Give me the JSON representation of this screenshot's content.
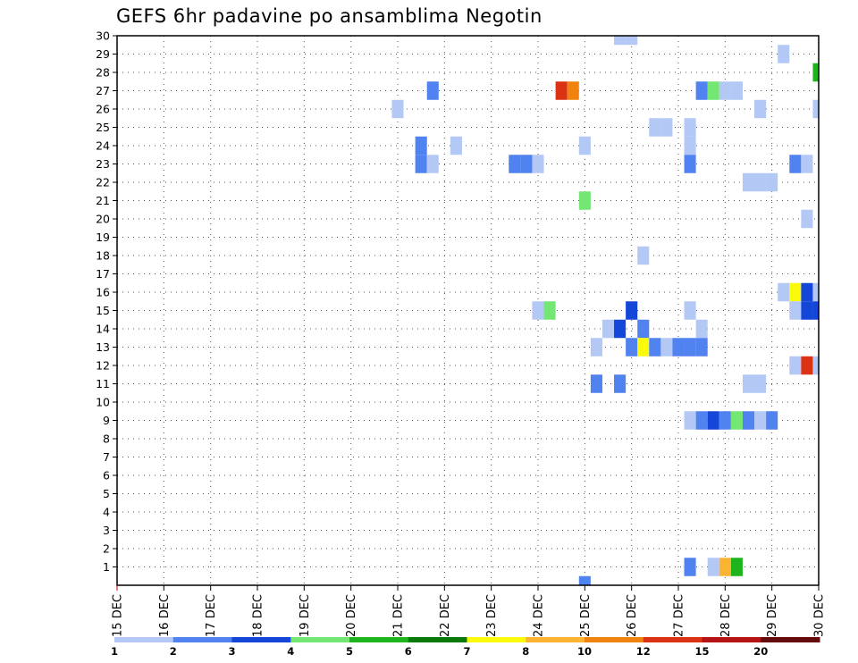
{
  "chart_data": {
    "type": "heatmap",
    "title": "GEFS 6hr padavine po ansamblima Negotin",
    "xlabel": "",
    "ylabel": "",
    "xlim": [
      15,
      30
    ],
    "ylim": [
      0,
      30
    ],
    "grid": true,
    "x_tick_labels": [
      "15 DEC",
      "16 DEC",
      "17 DEC",
      "18 DEC",
      "19 DEC",
      "20 DEC",
      "21 DEC",
      "22 DEC",
      "23 DEC",
      "24 DEC",
      "25 DEC",
      "26 DEC",
      "27 DEC",
      "28 DEC",
      "29 DEC",
      "30 DEC"
    ],
    "y_tick_labels": [
      "1",
      "2",
      "3",
      "4",
      "5",
      "6",
      "7",
      "8",
      "9",
      "10",
      "11",
      "12",
      "13",
      "14",
      "15",
      "16",
      "17",
      "18",
      "19",
      "20",
      "21",
      "22",
      "23",
      "24",
      "25",
      "26",
      "27",
      "28",
      "29",
      "30"
    ],
    "legend": {
      "position": "bottom",
      "bins": [
        {
          "from": 1,
          "to": 2,
          "color": "#b4c8f5"
        },
        {
          "from": 2,
          "to": 3,
          "color": "#5082f0"
        },
        {
          "from": 3,
          "to": 4,
          "color": "#1446d7"
        },
        {
          "from": 4,
          "to": 5,
          "color": "#73e673"
        },
        {
          "from": 5,
          "to": 6,
          "color": "#1eb41e"
        },
        {
          "from": 6,
          "to": 7,
          "color": "#0a780a"
        },
        {
          "from": 7,
          "to": 8,
          "color": "#fafa0a"
        },
        {
          "from": 8,
          "to": 10,
          "color": "#fab432"
        },
        {
          "from": 10,
          "to": 12,
          "color": "#f0820f"
        },
        {
          "from": 12,
          "to": 15,
          "color": "#dc3214"
        },
        {
          "from": 15,
          "to": 20,
          "color": "#b41414"
        },
        {
          "from": 20,
          "to": null,
          "color": "#640a0a"
        }
      ],
      "labels": [
        "1",
        "2",
        "3",
        "4",
        "5",
        "6",
        "7",
        "8",
        "10",
        "12",
        "15",
        "20"
      ]
    },
    "cells": [
      {
        "x": 25.0,
        "y": 0,
        "v": 2.5
      },
      {
        "x": 25.75,
        "y": 30,
        "v": 1.5
      },
      {
        "x": 26.0,
        "y": 30,
        "v": 1.5
      },
      {
        "x": 29.25,
        "y": 29,
        "v": 1.5
      },
      {
        "x": 30.0,
        "y": 28,
        "v": 5.5
      },
      {
        "x": 21.75,
        "y": 27,
        "v": 2.5
      },
      {
        "x": 24.5,
        "y": 27,
        "v": 13
      },
      {
        "x": 24.75,
        "y": 27,
        "v": 11
      },
      {
        "x": 27.5,
        "y": 27,
        "v": 2.5
      },
      {
        "x": 27.75,
        "y": 27,
        "v": 4.5
      },
      {
        "x": 28.0,
        "y": 27,
        "v": 1.5
      },
      {
        "x": 28.25,
        "y": 27,
        "v": 1.5
      },
      {
        "x": 21.0,
        "y": 26,
        "v": 1.5
      },
      {
        "x": 28.75,
        "y": 26,
        "v": 1.5
      },
      {
        "x": 30.0,
        "y": 26,
        "v": 1.5
      },
      {
        "x": 26.5,
        "y": 25,
        "v": 1.5
      },
      {
        "x": 26.75,
        "y": 25,
        "v": 1.5
      },
      {
        "x": 27.25,
        "y": 25,
        "v": 1.5
      },
      {
        "x": 21.5,
        "y": 24,
        "v": 2.5
      },
      {
        "x": 22.25,
        "y": 24,
        "v": 1.5
      },
      {
        "x": 25.0,
        "y": 24,
        "v": 1.5
      },
      {
        "x": 27.25,
        "y": 24,
        "v": 1.5
      },
      {
        "x": 21.5,
        "y": 23,
        "v": 2.5
      },
      {
        "x": 21.75,
        "y": 23,
        "v": 1.5
      },
      {
        "x": 23.5,
        "y": 23,
        "v": 2.5
      },
      {
        "x": 23.75,
        "y": 23,
        "v": 2.5
      },
      {
        "x": 24.0,
        "y": 23,
        "v": 1.5
      },
      {
        "x": 27.25,
        "y": 23,
        "v": 2.5
      },
      {
        "x": 29.5,
        "y": 23,
        "v": 2.5
      },
      {
        "x": 29.75,
        "y": 23,
        "v": 1.5
      },
      {
        "x": 28.5,
        "y": 22,
        "v": 1.5
      },
      {
        "x": 28.75,
        "y": 22,
        "v": 1.5
      },
      {
        "x": 29.0,
        "y": 22,
        "v": 1.5
      },
      {
        "x": 25.0,
        "y": 21,
        "v": 4.5
      },
      {
        "x": 29.75,
        "y": 20,
        "v": 1.5
      },
      {
        "x": 26.25,
        "y": 18,
        "v": 1.5
      },
      {
        "x": 29.25,
        "y": 16,
        "v": 1.5
      },
      {
        "x": 29.5,
        "y": 16,
        "v": 7.5
      },
      {
        "x": 29.75,
        "y": 16,
        "v": 3.5
      },
      {
        "x": 30.0,
        "y": 16,
        "v": 1.5
      },
      {
        "x": 24.0,
        "y": 15,
        "v": 1.5
      },
      {
        "x": 24.25,
        "y": 15,
        "v": 4.5
      },
      {
        "x": 26.0,
        "y": 15,
        "v": 3.5
      },
      {
        "x": 27.25,
        "y": 15,
        "v": 1.5
      },
      {
        "x": 29.5,
        "y": 15,
        "v": 1.5
      },
      {
        "x": 29.75,
        "y": 15,
        "v": 3.5
      },
      {
        "x": 30.0,
        "y": 15,
        "v": 3.5
      },
      {
        "x": 25.5,
        "y": 14,
        "v": 1.5
      },
      {
        "x": 25.75,
        "y": 14,
        "v": 3.5
      },
      {
        "x": 26.25,
        "y": 14,
        "v": 2.5
      },
      {
        "x": 27.5,
        "y": 14,
        "v": 1.5
      },
      {
        "x": 25.25,
        "y": 13,
        "v": 1.5
      },
      {
        "x": 26.0,
        "y": 13,
        "v": 2.5
      },
      {
        "x": 26.25,
        "y": 13,
        "v": 7.5
      },
      {
        "x": 26.5,
        "y": 13,
        "v": 2.5
      },
      {
        "x": 26.75,
        "y": 13,
        "v": 1.5
      },
      {
        "x": 27.0,
        "y": 13,
        "v": 2.5
      },
      {
        "x": 27.25,
        "y": 13,
        "v": 2.5
      },
      {
        "x": 27.5,
        "y": 13,
        "v": 2.5
      },
      {
        "x": 29.5,
        "y": 12,
        "v": 1.5
      },
      {
        "x": 29.75,
        "y": 12,
        "v": 13
      },
      {
        "x": 30.0,
        "y": 12,
        "v": 1.5
      },
      {
        "x": 25.25,
        "y": 11,
        "v": 2.5
      },
      {
        "x": 25.75,
        "y": 11,
        "v": 2.5
      },
      {
        "x": 28.5,
        "y": 11,
        "v": 1.5
      },
      {
        "x": 28.75,
        "y": 11,
        "v": 1.5
      },
      {
        "x": 27.25,
        "y": 9,
        "v": 1.5
      },
      {
        "x": 27.5,
        "y": 9,
        "v": 2.5
      },
      {
        "x": 27.75,
        "y": 9,
        "v": 3.5
      },
      {
        "x": 28.0,
        "y": 9,
        "v": 2.5
      },
      {
        "x": 28.25,
        "y": 9,
        "v": 4.5
      },
      {
        "x": 28.5,
        "y": 9,
        "v": 2.5
      },
      {
        "x": 28.75,
        "y": 9,
        "v": 1.5
      },
      {
        "x": 29.0,
        "y": 9,
        "v": 2.5
      },
      {
        "x": 27.25,
        "y": 1,
        "v": 2.5
      },
      {
        "x": 27.75,
        "y": 1,
        "v": 1.5
      },
      {
        "x": 28.0,
        "y": 1,
        "v": 9
      },
      {
        "x": 28.25,
        "y": 1,
        "v": 5.5
      }
    ]
  }
}
